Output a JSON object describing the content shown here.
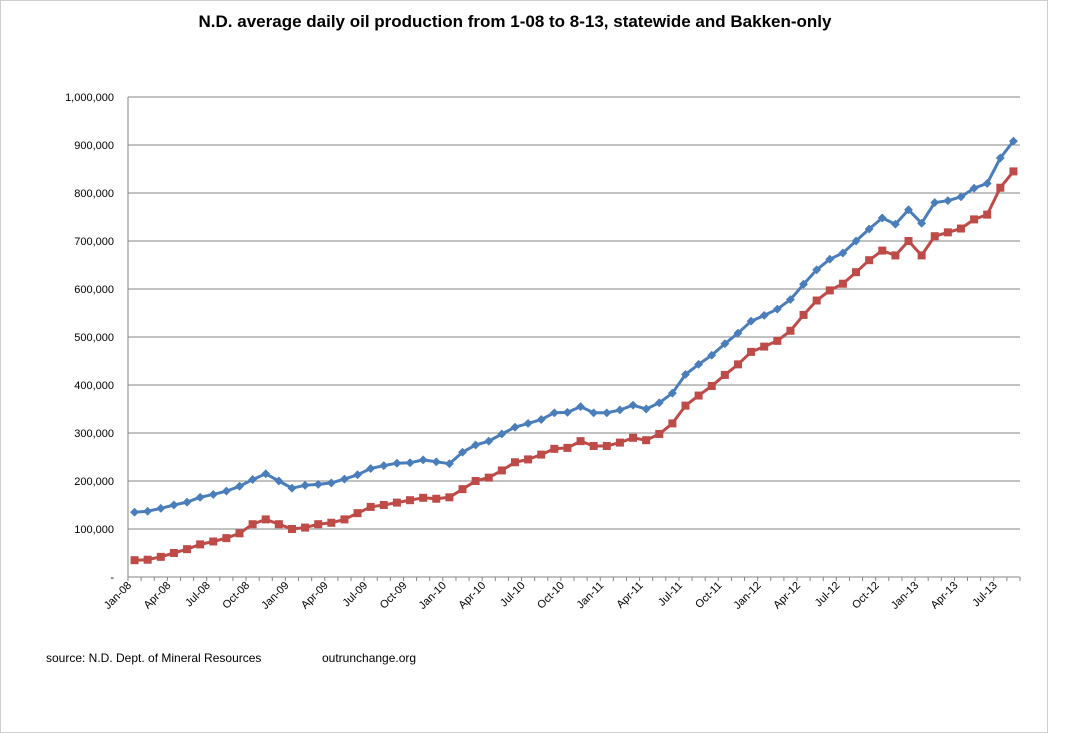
{
  "chart_data": {
    "type": "line",
    "title": "N.D. average daily oil production from 1-08 to 8-13, statewide and Bakken-only",
    "xlabel": "",
    "ylabel": "",
    "ylim": [
      0,
      1000000
    ],
    "y_ticks": [
      "-",
      "100,000",
      "200,000",
      "300,000",
      "400,000",
      "500,000",
      "600,000",
      "700,000",
      "800,000",
      "900,000",
      "1,000,000"
    ],
    "x_tick_labels": [
      "Jan-08",
      "Apr-08",
      "Jul-08",
      "Oct-08",
      "Jan-09",
      "Apr-09",
      "Jul-09",
      "Oct-09",
      "Jan-10",
      "Apr-10",
      "Jul-10",
      "Oct-10",
      "Jan-11",
      "Apr-11",
      "Jul-11",
      "Oct-11",
      "Jan-12",
      "Apr-12",
      "Jul-12",
      "Oct-12",
      "Jan-13",
      "Apr-13",
      "Jul-13"
    ],
    "grid": true,
    "legend": "none",
    "series": [
      {
        "name": "Statewide",
        "color": "#4a7ebb",
        "marker": "diamond",
        "values": [
          135000,
          137000,
          143000,
          150000,
          156000,
          166000,
          172000,
          179000,
          189000,
          203000,
          215000,
          200000,
          185000,
          191000,
          193000,
          196000,
          204000,
          213000,
          226000,
          232000,
          237000,
          238000,
          244000,
          240000,
          236000,
          260000,
          275000,
          283000,
          298000,
          312000,
          320000,
          328000,
          342000,
          343000,
          355000,
          342000,
          342000,
          348000,
          358000,
          350000,
          363000,
          383000,
          422000,
          443000,
          462000,
          486000,
          508000,
          533000,
          545000,
          558000,
          578000,
          610000,
          640000,
          662000,
          675000,
          700000,
          725000,
          748000,
          735000,
          765000,
          737000,
          780000,
          784000,
          792000,
          810000,
          820000,
          873000,
          908000
        ]
      },
      {
        "name": "Bakken-only",
        "color": "#be4b48",
        "marker": "square",
        "values": [
          35000,
          36000,
          42000,
          50000,
          58000,
          68000,
          74000,
          81000,
          91000,
          110000,
          120000,
          110000,
          100000,
          103000,
          110000,
          113000,
          120000,
          133000,
          146000,
          150000,
          155000,
          160000,
          165000,
          163000,
          166000,
          183000,
          200000,
          207000,
          222000,
          239000,
          245000,
          255000,
          267000,
          269000,
          283000,
          273000,
          273000,
          280000,
          290000,
          285000,
          298000,
          320000,
          357000,
          378000,
          398000,
          421000,
          443000,
          469000,
          480000,
          492000,
          513000,
          546000,
          576000,
          597000,
          611000,
          635000,
          660000,
          680000,
          670000,
          700000,
          670000,
          710000,
          718000,
          726000,
          745000,
          755000,
          811000,
          845000
        ]
      }
    ]
  },
  "footer": {
    "source": "source: N.D. Dept. of Mineral Resources",
    "site": "outrunchange.org"
  }
}
